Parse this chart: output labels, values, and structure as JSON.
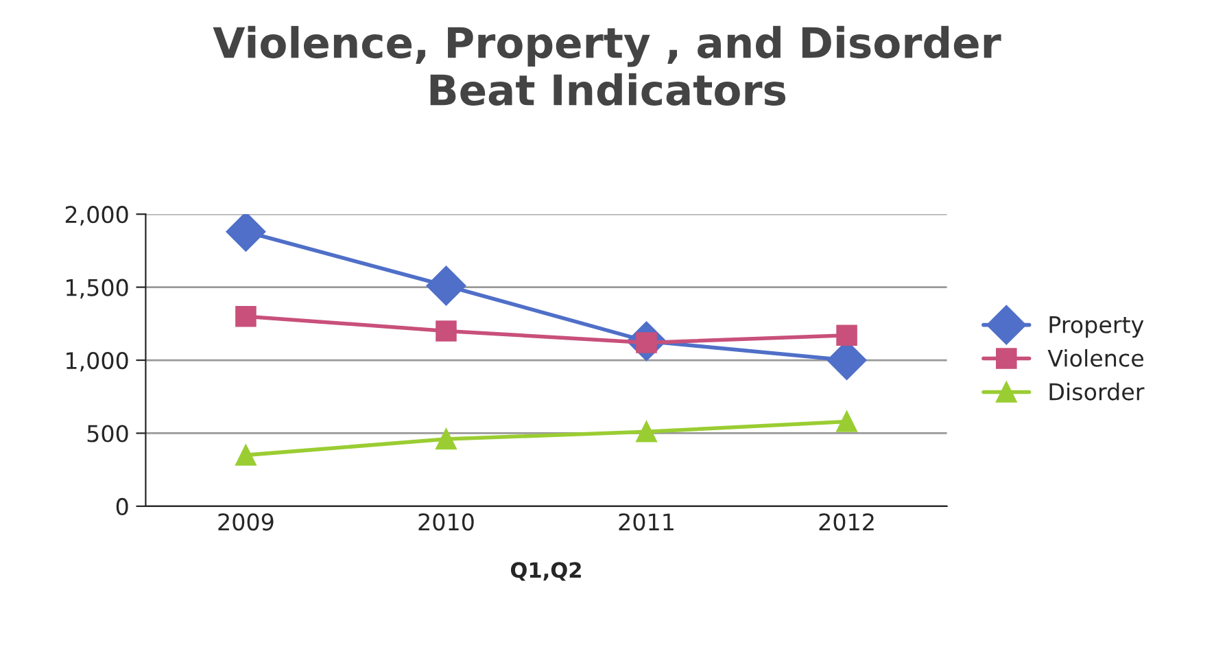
{
  "chart_data": {
    "type": "line",
    "title": "Violence, Property , and Disorder\nBeat Indicators",
    "xlabel": "Q1,Q2",
    "categories": [
      "2009",
      "2010",
      "2011",
      "2012"
    ],
    "series": [
      {
        "name": "Property",
        "color": "#4f6fc8",
        "marker": "diamond",
        "values": [
          1880,
          1510,
          1130,
          1000
        ]
      },
      {
        "name": "Violence",
        "color": "#c8507a",
        "marker": "square",
        "values": [
          1300,
          1200,
          1120,
          1170
        ]
      },
      {
        "name": "Disorder",
        "color": "#9acd32",
        "marker": "triangle",
        "values": [
          350,
          460,
          510,
          580
        ]
      }
    ],
    "ylim": [
      0,
      2000
    ],
    "yticks": [
      {
        "value": 0,
        "label": "0"
      },
      {
        "value": 500,
        "label": "500"
      },
      {
        "value": 1000,
        "label": "1,000"
      },
      {
        "value": 1500,
        "label": "1,500"
      },
      {
        "value": 2000,
        "label": "2,000"
      }
    ],
    "grid": "y",
    "legend": "right",
    "line_style": "solid"
  }
}
